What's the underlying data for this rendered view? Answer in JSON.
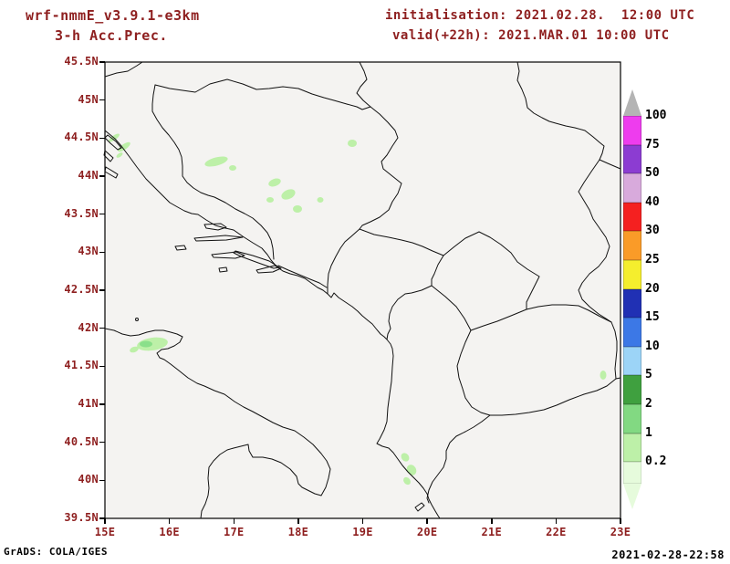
{
  "header": {
    "model_title": "wrf-nmmE_v3.9.1-e3km",
    "product_title": "3-h Acc.Prec.",
    "init_line": "initialisation: 2021.02.28.  12:00 UTC",
    "valid_line": "valid(+22h): 2021.MAR.01 10:00 UTC"
  },
  "footer": {
    "credit": "GrADS: COLA/IGES",
    "timestamp": "2021-02-28-22:58"
  },
  "map": {
    "x_tick_labels": [
      "15E",
      "16E",
      "17E",
      "18E",
      "19E",
      "20E",
      "21E",
      "22E",
      "23E"
    ],
    "y_tick_labels": [
      "45.5N",
      "45N",
      "44.5N",
      "44N",
      "43.5N",
      "43N",
      "42.5N",
      "42N",
      "41.5N",
      "41N",
      "40.5N",
      "40N",
      "39.5N"
    ],
    "precip_fill_light": "#bdf0a8",
    "precip_fill_medium": "#8adf8a"
  },
  "legend": {
    "unit_levels": [
      "100",
      "75",
      "50",
      "40",
      "30",
      "25",
      "20",
      "15",
      "10",
      "5",
      "2",
      "1",
      "0.2"
    ],
    "segment_colors": [
      "#ee3cee",
      "#8c3cd2",
      "#d8aadc",
      "#f52020",
      "#fa9b28",
      "#f5ee2d",
      "#2030b4",
      "#3c78e6",
      "#9cd4f7",
      "#3fa03f",
      "#82d982",
      "#bdf0a8"
    ],
    "overflow_color": "#b4b4b4",
    "underflow_color": "#e6fbdc"
  },
  "colors": {
    "annotation_text": "#8e1f1f",
    "frame": "#000000",
    "map_background": "#f4f3f1"
  }
}
